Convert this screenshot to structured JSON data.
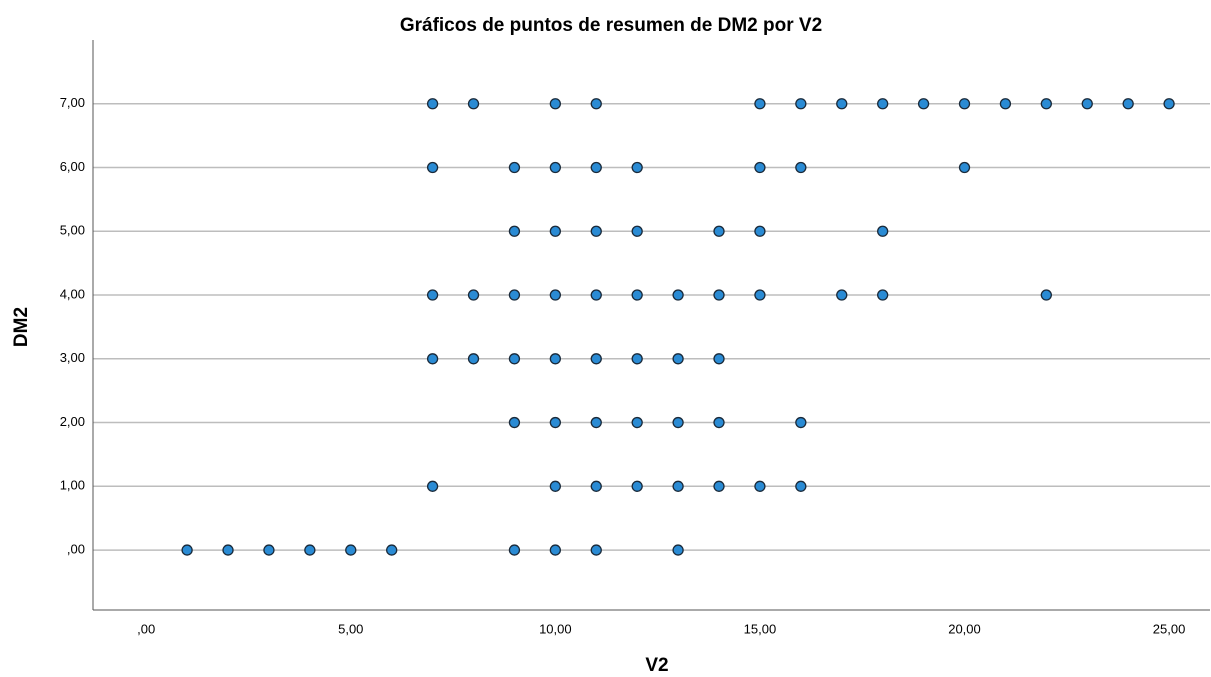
{
  "chart_data": {
    "type": "scatter",
    "title": "Gráficos de puntos de resumen de DM2 por V2",
    "x_label": "V2",
    "y_label": "DM2",
    "x": [
      7,
      8,
      10,
      11,
      15,
      16,
      17,
      18,
      19,
      20,
      21,
      22,
      23,
      24,
      25,
      7,
      9,
      10,
      11,
      12,
      15,
      16,
      20,
      9,
      10,
      11,
      12,
      14,
      15,
      18,
      7,
      8,
      9,
      10,
      11,
      12,
      13,
      14,
      15,
      17,
      18,
      22,
      7,
      8,
      9,
      10,
      11,
      12,
      13,
      14,
      9,
      10,
      11,
      12,
      13,
      14,
      16,
      7,
      10,
      11,
      12,
      13,
      14,
      15,
      16,
      1,
      2,
      3,
      4,
      5,
      6,
      9,
      10,
      11,
      13
    ],
    "values": [
      7,
      7,
      7,
      7,
      7,
      7,
      7,
      7,
      7,
      7,
      7,
      7,
      7,
      7,
      7,
      6,
      6,
      6,
      6,
      6,
      6,
      6,
      6,
      5,
      5,
      5,
      5,
      5,
      5,
      5,
      4,
      4,
      4,
      4,
      4,
      4,
      4,
      4,
      4,
      4,
      4,
      4,
      3,
      3,
      3,
      3,
      3,
      3,
      3,
      3,
      2,
      2,
      2,
      2,
      2,
      2,
      2,
      1,
      1,
      1,
      1,
      1,
      1,
      1,
      1,
      0,
      0,
      0,
      0,
      0,
      0,
      0,
      0,
      0,
      0
    ],
    "color": "#2a8bd4",
    "xlim": [
      -1.3,
      26
    ],
    "xticks": [
      {
        "value": 0,
        "label": ",00"
      },
      {
        "value": 5,
        "label": "5,00"
      },
      {
        "value": 10,
        "label": "10,00"
      },
      {
        "value": 15,
        "label": "15,00"
      },
      {
        "value": 20,
        "label": "20,00"
      },
      {
        "value": 25,
        "label": "25,00"
      }
    ],
    "ylim": [
      -0.94,
      8
    ],
    "yticks": [
      {
        "value": 0,
        "label": ",00"
      },
      {
        "value": 1,
        "label": "1,00"
      },
      {
        "value": 2,
        "label": "2,00"
      },
      {
        "value": 3,
        "label": "3,00"
      },
      {
        "value": 4,
        "label": "4,00"
      },
      {
        "value": 5,
        "label": "5,00"
      },
      {
        "value": 6,
        "label": "6,00"
      },
      {
        "value": 7,
        "label": "7,00"
      }
    ],
    "grid": true
  }
}
